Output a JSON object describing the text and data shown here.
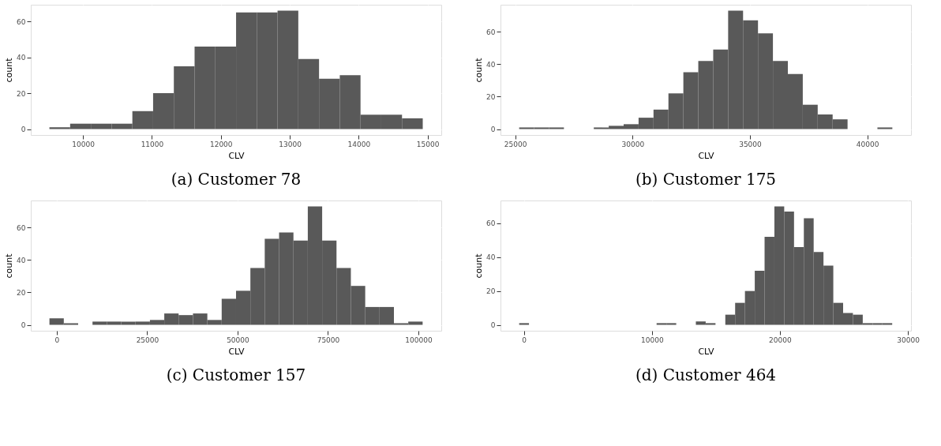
{
  "chart_data": [
    {
      "type": "histogram",
      "title": "(a) Customer 78",
      "xlabel": "CLV",
      "ylabel": "count",
      "color": "#595959",
      "grid": true,
      "bins": [
        9512,
        9813,
        10114,
        10415,
        10716,
        11017,
        11318,
        11619,
        11920,
        12221,
        12522,
        12823,
        13124,
        13425,
        13726,
        14027,
        14328,
        14629,
        14930
      ],
      "values": [
        1,
        3,
        3,
        3,
        10,
        20,
        35,
        46,
        46,
        65,
        65,
        66,
        39,
        28,
        30,
        8,
        8,
        6
      ],
      "xlim": [
        9242,
        15199
      ],
      "xticks": [
        10000,
        11000,
        12000,
        13000,
        14000,
        15000
      ],
      "ylim": [
        -3.3,
        69.3
      ],
      "yticks": [
        0,
        20,
        40,
        60
      ]
    },
    {
      "type": "histogram",
      "title": "(b) Customer 175",
      "xlabel": "CLV",
      "ylabel": "count",
      "color": "#595959",
      "grid": true,
      "bins": [
        25167,
        25803,
        26439,
        27075,
        27711,
        28347,
        28983,
        29619,
        30255,
        30891,
        31527,
        32163,
        32799,
        33435,
        34071,
        34707,
        35343,
        35979,
        36615,
        37251,
        37887,
        38523,
        39159,
        39795,
        40431,
        41067
      ],
      "values": [
        1,
        1,
        1,
        0,
        0,
        1,
        2,
        3,
        7,
        12,
        22,
        35,
        42,
        49,
        73,
        67,
        59,
        42,
        34,
        15,
        9,
        6,
        0,
        0,
        1
      ],
      "xlim": [
        24372,
        41862
      ],
      "xticks": [
        25000,
        30000,
        35000,
        40000
      ],
      "ylim": [
        -3.65,
        76.65
      ],
      "yticks": [
        0,
        20,
        40,
        60
      ]
    },
    {
      "type": "histogram",
      "title": "(c) Customer 157",
      "xlabel": "CLV",
      "ylabel": "count",
      "color": "#595959",
      "grid": true,
      "bins": [
        -2026,
        1943,
        5912,
        9881,
        13850,
        17819,
        21788,
        25757,
        29726,
        33695,
        37664,
        41633,
        45602,
        49571,
        53540,
        57509,
        61478,
        65447,
        69416,
        73385,
        77354,
        81323,
        85292,
        89261,
        93230,
        97199,
        101168
      ],
      "values": [
        4,
        1,
        0,
        2,
        2,
        2,
        2,
        3,
        7,
        6,
        7,
        3,
        16,
        21,
        35,
        53,
        57,
        52,
        73,
        52,
        35,
        24,
        11,
        11,
        1,
        2
      ],
      "xlim": [
        -7186,
        106330
      ],
      "xticks": [
        0,
        25000,
        50000,
        75000,
        100000
      ],
      "ylim": [
        -3.65,
        76.65
      ],
      "yticks": [
        0,
        20,
        40,
        60
      ]
    },
    {
      "type": "histogram",
      "title": "(d) Customer 464",
      "xlabel": "CLV",
      "ylabel": "count",
      "color": "#595959",
      "grid": true,
      "bins": [
        -372,
        395,
        1162,
        1929,
        2696,
        3463,
        4230,
        4997,
        5764,
        6531,
        7298,
        8065,
        8832,
        9599,
        10366,
        11133,
        11900,
        12667,
        13434,
        14201,
        14968,
        15735,
        16502,
        17269,
        18036,
        18803,
        19570,
        20337,
        21104,
        21871,
        22638,
        23405,
        24172,
        24939,
        25706,
        26473,
        27240,
        28007,
        28774
      ],
      "values": [
        1,
        0,
        0,
        0,
        0,
        0,
        0,
        0,
        0,
        0,
        0,
        0,
        0,
        0,
        1,
        1,
        0,
        0,
        2,
        1,
        0,
        6,
        13,
        20,
        32,
        52,
        70,
        67,
        46,
        63,
        43,
        35,
        13,
        7,
        6,
        1,
        1,
        1
      ],
      "xlim": [
        -1830,
        30243
      ],
      "xticks": [
        0,
        10000,
        20000,
        30000
      ],
      "ylim": [
        -3.5,
        73.5
      ],
      "yticks": [
        0,
        20,
        40,
        60
      ]
    }
  ]
}
